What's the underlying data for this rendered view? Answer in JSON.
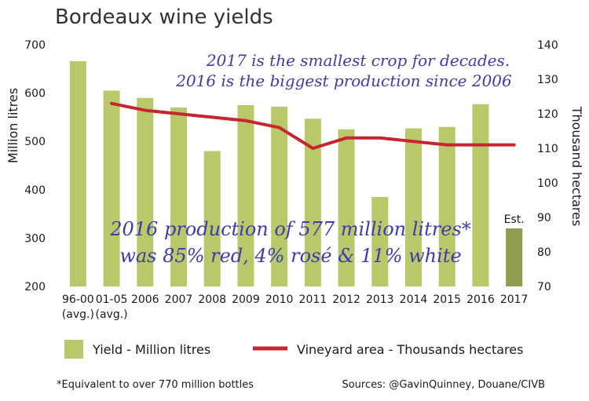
{
  "chart_data": {
    "type": "bar",
    "title": "Bordeaux wine yields",
    "ylabel": "Million litres",
    "y2label": "Thousand hectares",
    "ylim": [
      200,
      700
    ],
    "y2lim": [
      70,
      140
    ],
    "yticks": [
      200,
      300,
      400,
      500,
      600,
      700
    ],
    "y2ticks": [
      70,
      80,
      90,
      100,
      110,
      120,
      130,
      140
    ],
    "categories": [
      "96-00",
      "01-05",
      "2006",
      "2007",
      "2008",
      "2009",
      "2010",
      "2011",
      "2012",
      "2013",
      "2014",
      "2015",
      "2016",
      "2017"
    ],
    "category_sublabels": [
      "(avg.)",
      "(avg.)",
      "",
      "",
      "",
      "",
      "",
      "",
      "",
      "",
      "",
      "",
      "",
      ""
    ],
    "series": [
      {
        "name": "Yield - Million litres",
        "type": "bar",
        "axis": "left",
        "color": "#b9c96a",
        "highlight_color": "#8f9c4e",
        "values": [
          666,
          605,
          590,
          570,
          480,
          575,
          572,
          547,
          525,
          385,
          527,
          530,
          577,
          320
        ]
      },
      {
        "name": "Vineyard area - Thousands hectares",
        "type": "line",
        "axis": "right",
        "color": "#c8262e",
        "values": [
          null,
          123,
          121,
          120,
          119,
          118,
          116,
          110,
          113,
          113,
          112,
          111,
          111,
          111
        ]
      }
    ],
    "highlight_index": 13,
    "highlight_label": "Est.",
    "annotations": [
      "2017 is the smallest crop for decades.",
      "2016 is the biggest production since 2006",
      "2016 production of 577 million litres*",
      "was 85% red, 4% rosé & 11% white"
    ],
    "footnote": "*Equivalent to over 770 million bottles",
    "source": "Sources: @GavinQuinney, Douane/CIVB",
    "legend_position": "bottom",
    "grid": false
  }
}
